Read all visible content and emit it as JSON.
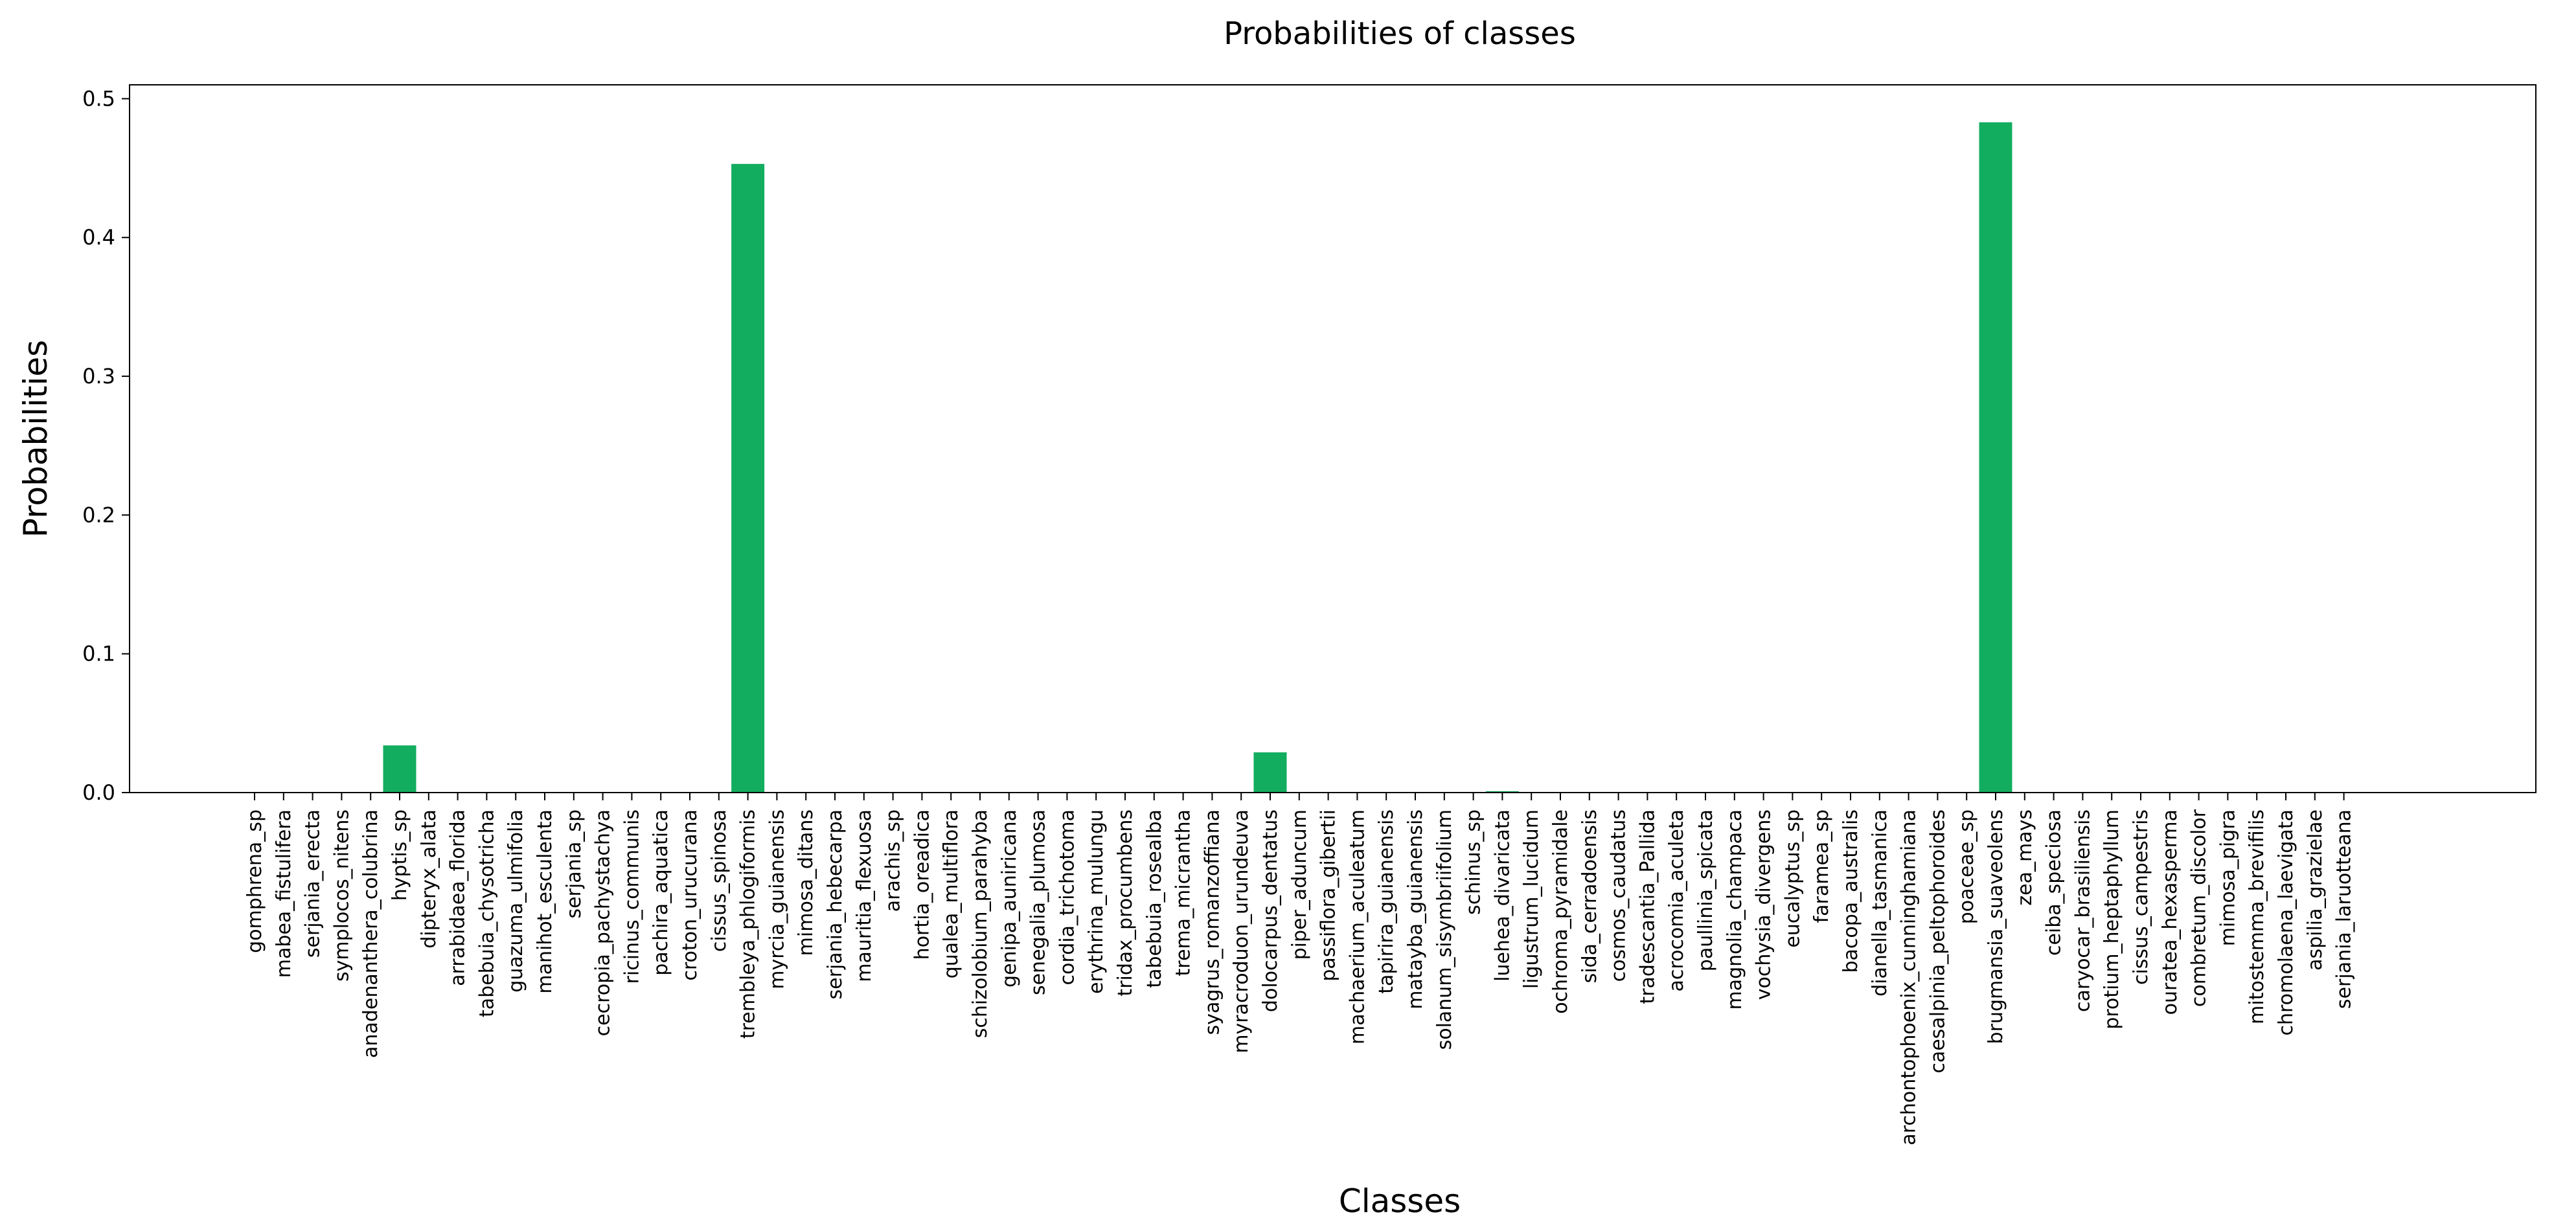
{
  "chart_data": {
    "type": "bar",
    "title": "Probabilities of classes",
    "xlabel": "Classes",
    "ylabel": "Probabilities",
    "ylim": [
      0,
      0.51
    ],
    "yticks": [
      "0.0",
      "0.1",
      "0.2",
      "0.3",
      "0.4",
      "0.5"
    ],
    "ytick_values": [
      0.0,
      0.1,
      0.2,
      0.3,
      0.4,
      0.5
    ],
    "grid": false,
    "bar_color": "#13ad5f",
    "categories": [
      "gomphrena_sp",
      "mabea_fistulifera",
      "serjania_erecta",
      "symplocos_nitens",
      "anadenanthera_colubrina",
      "hyptis_sp",
      "dipteryx_alata",
      "arrabidaea_florida",
      "tabebuia_chysotricha",
      "guazuma_ulmifolia",
      "manihot_esculenta",
      "serjania_sp",
      "cecropia_pachystachya",
      "ricinus_communis",
      "pachira_aquatica",
      "croton_urucurana",
      "cissus_spinosa",
      "trembleya_phlogiformis",
      "myrcia_guianensis",
      "mimosa_ditans",
      "serjania_hebecarpa",
      "mauritia_flexuosa",
      "arachis_sp",
      "hortia_oreadica",
      "qualea_multiflora",
      "schizolobium_parahyba",
      "genipa_auniricana",
      "senegalia_plumosa",
      "cordia_trichotoma",
      "erythrina_mulungu",
      "tridax_procumbens",
      "tabebuia_rosealba",
      "trema_micrantha",
      "syagrus_romanzoffiana",
      "myracroduon_urundeuva",
      "dolocarpus_dentatus",
      "piper_aduncum",
      "passiflora_gibertii",
      "machaerium_aculeatum",
      "tapirira_guianensis",
      "matayba_guianensis",
      "solanum_sisymbriifolium",
      "schinus_sp",
      "luehea_divaricata",
      "ligustrum_lucidum",
      "ochroma_pyramidale",
      "sida_cerradoensis",
      "cosmos_caudatus",
      "tradescantia_Pallida",
      "acrocomia_aculeta",
      "paullinia_spicata",
      "magnolia_champaca",
      "vochysia_divergens",
      "eucalyptus_sp",
      "faramea_sp",
      "bacopa_australis",
      "dianella_tasmanica",
      "archontophoenix_cunninghamiana",
      "caesalpinia_peltophoroides",
      "poaceae_sp",
      "brugmansia_suaveolens",
      "zea_mays",
      "ceiba_speciosa",
      "caryocar_brasiliensis",
      "protium_heptaphyllum",
      "cissus_campestris",
      "ouratea_hexasperma",
      "combretum_discolor",
      "mimosa_pigra",
      "mitostemma_brevifilis",
      "chromolaena_laevigata",
      "aspilia_grazielae",
      "serjania_laruotteana"
    ],
    "values": [
      0.0,
      0.0,
      0.0,
      0.0,
      0.0,
      0.034,
      0.0,
      0.0,
      0.0,
      0.0,
      0.0,
      0.0,
      0.0,
      0.0,
      0.0,
      0.0,
      0.0,
      0.453,
      0.0,
      0.0,
      0.0,
      0.0,
      0.0,
      0.0,
      0.0,
      0.0,
      0.0,
      0.0,
      0.0,
      0.0,
      0.0,
      0.0,
      0.0,
      0.0,
      0.0,
      0.029,
      0.0,
      0.0,
      0.0,
      0.0,
      0.0,
      0.0,
      0.0,
      0.001,
      0.0,
      0.0,
      0.0,
      0.0,
      0.0,
      0.0,
      0.0,
      0.0,
      0.0,
      0.0,
      0.0,
      0.0,
      0.0,
      0.0,
      0.0,
      0.0,
      0.483,
      0.0,
      0.0,
      0.0,
      0.0,
      0.0,
      0.0,
      0.0,
      0.0,
      0.0,
      0.0,
      0.0,
      0.0
    ]
  }
}
